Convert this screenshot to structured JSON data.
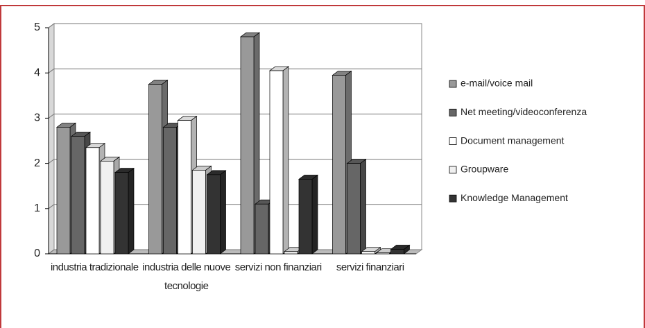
{
  "chart_data": {
    "type": "bar3d",
    "categories": [
      "industria tradizionale",
      "industria delle nuove tecnologie",
      "servizi non finanziari",
      "servizi finanziari"
    ],
    "series": [
      {
        "name": "e-mail/voice mail",
        "color": "#999999",
        "values": [
          2.8,
          3.75,
          4.8,
          3.95
        ]
      },
      {
        "name": "Net meeting/videoconferenza",
        "color": "#666666",
        "values": [
          2.6,
          2.8,
          1.1,
          2.0
        ]
      },
      {
        "name": "Document management",
        "color": "#ffffff",
        "values": [
          2.35,
          2.95,
          4.05,
          0.05
        ]
      },
      {
        "name": "Groupware",
        "color": "#f0f0f0",
        "values": [
          2.05,
          1.85,
          0.05,
          0.02
        ]
      },
      {
        "name": "Knowledge Management",
        "color": "#333333",
        "values": [
          1.8,
          1.75,
          1.65,
          0.1
        ]
      }
    ],
    "ylim": [
      0,
      5
    ],
    "yticks": [
      0,
      1,
      2,
      3,
      4,
      5
    ],
    "grid": true
  }
}
